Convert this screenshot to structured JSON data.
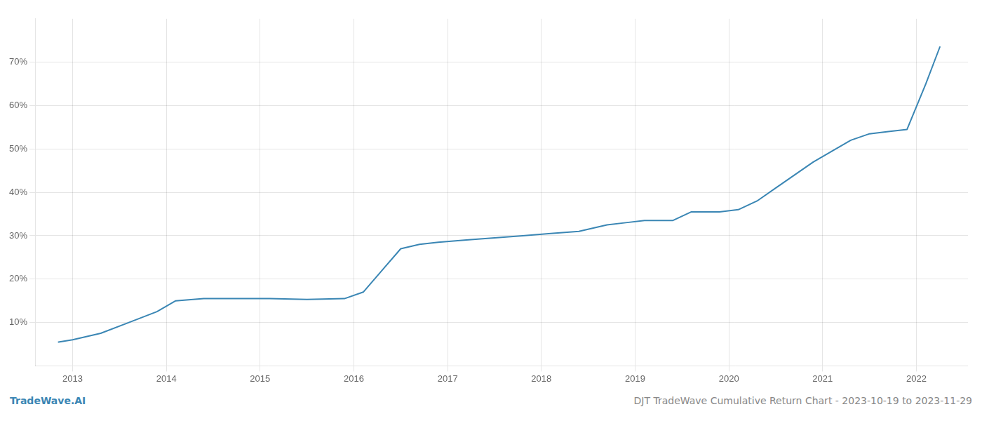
{
  "chart_data": {
    "type": "line",
    "x": [
      2012.85,
      2013.0,
      2013.3,
      2013.6,
      2013.9,
      2014.1,
      2014.4,
      2014.7,
      2014.9,
      2015.1,
      2015.5,
      2015.9,
      2016.1,
      2016.3,
      2016.5,
      2016.7,
      2016.9,
      2017.2,
      2017.5,
      2017.8,
      2018.1,
      2018.4,
      2018.7,
      2018.9,
      2019.1,
      2019.4,
      2019.6,
      2019.9,
      2020.1,
      2020.3,
      2020.5,
      2020.7,
      2020.9,
      2021.1,
      2021.3,
      2021.5,
      2021.7,
      2021.9,
      2022.1,
      2022.25
    ],
    "values": [
      5.5,
      6.0,
      7.5,
      10.0,
      12.5,
      15.0,
      15.5,
      15.5,
      15.5,
      15.5,
      15.3,
      15.5,
      17.0,
      22.0,
      27.0,
      28.0,
      28.5,
      29.0,
      29.5,
      30.0,
      30.5,
      31.0,
      32.5,
      33.0,
      33.5,
      33.5,
      35.5,
      35.5,
      36.0,
      38.0,
      41.0,
      44.0,
      47.0,
      49.5,
      52.0,
      53.5,
      54.0,
      54.5,
      65.0,
      73.5
    ],
    "color": "#3a86b4",
    "xlim": [
      2012.6,
      2022.55
    ],
    "xticks": [
      2013,
      2014,
      2015,
      2016,
      2017,
      2018,
      2019,
      2020,
      2021,
      2022
    ],
    "ylim": [
      0,
      80
    ],
    "yticks": [
      {
        "value": 10,
        "label": "10%"
      },
      {
        "value": 20,
        "label": "20%"
      },
      {
        "value": 30,
        "label": "30%"
      },
      {
        "value": 40,
        "label": "40%"
      },
      {
        "value": 50,
        "label": "50%"
      },
      {
        "value": 60,
        "label": "60%"
      },
      {
        "value": 70,
        "label": "70%"
      }
    ],
    "grid": true,
    "annotations": [
      "TradeWave.AI",
      "DJT TradeWave Cumulative Return Chart - 2023-10-19 to 2023-11-29"
    ]
  }
}
